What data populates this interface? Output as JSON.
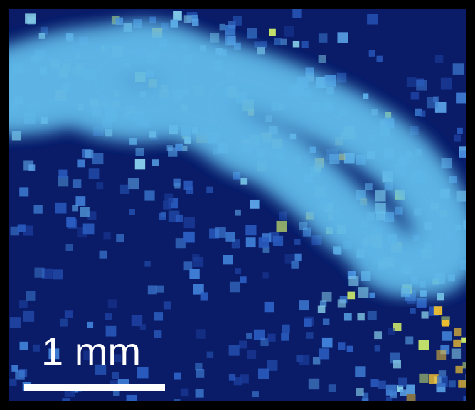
{
  "scale_bar": {
    "label": "1 mm"
  }
}
